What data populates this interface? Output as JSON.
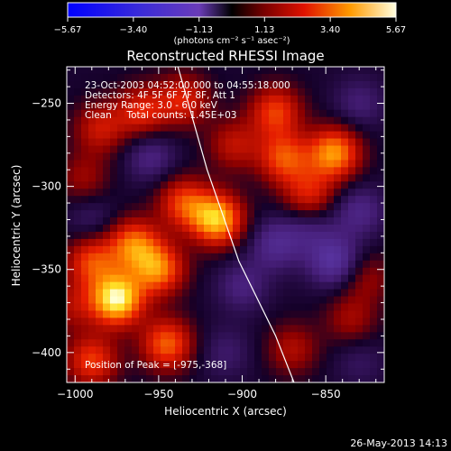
{
  "chart_data": {
    "type": "heatmap",
    "title": "Reconstructed RHESSI Image",
    "xlabel": "Heliocentric X (arcsec)",
    "ylabel": "Heliocentric Y (arcsec)",
    "xlim": [
      -1005,
      -815
    ],
    "ylim": [
      -418,
      -228
    ],
    "x_ticks": [
      -1000,
      -950,
      -900,
      -850
    ],
    "x_tick_labels": [
      "−1000",
      "−950",
      "−900",
      "−850"
    ],
    "y_ticks": [
      -250,
      -300,
      -350,
      -400
    ],
    "y_tick_labels": [
      "−250",
      "−300",
      "−350",
      "−400"
    ],
    "colorbar": {
      "range": [
        -5.67,
        5.67
      ],
      "ticks": [
        -5.67,
        -3.4,
        -1.13,
        1.13,
        3.4,
        5.67
      ],
      "tick_labels": [
        "−5.67",
        "−3.40",
        "−1.13",
        "1.13",
        "3.40",
        "5.67"
      ],
      "unit_label": "(photons cm⁻² s⁻¹ asec⁻²)"
    },
    "annotations": {
      "time_range": "23-Oct-2003 04:52:00.000 to 04:55:18.000",
      "detectors": "Detectors: 4F 5F 6F 7F 8F, Att 1",
      "energy": "Energy Range: 3.0 - 6.0 keV",
      "clean": "Clean     Total counts: 1.45E+03",
      "peak": "Position of Peak = [-975,-368]"
    },
    "limb_arc": [
      [
        -941,
        -219
      ],
      [
        -921,
        -290
      ],
      [
        -902,
        -345
      ],
      [
        -880,
        -390
      ],
      [
        -869,
        -418
      ]
    ],
    "peaks": [
      {
        "x": -975,
        "y": -368,
        "value": 5.6
      },
      {
        "x": -915,
        "y": -320,
        "value": 4.8
      },
      {
        "x": -950,
        "y": -350,
        "value": 3.8
      },
      {
        "x": -990,
        "y": -345,
        "value": 3.0
      },
      {
        "x": -965,
        "y": -335,
        "value": 3.6
      },
      {
        "x": -935,
        "y": -310,
        "value": 3.0
      },
      {
        "x": -945,
        "y": -395,
        "value": 3.5
      },
      {
        "x": -990,
        "y": -405,
        "value": 3.0
      },
      {
        "x": -845,
        "y": -280,
        "value": 4.2
      },
      {
        "x": -875,
        "y": -283,
        "value": 3.2
      },
      {
        "x": -880,
        "y": -255,
        "value": 3.0
      },
      {
        "x": -860,
        "y": -305,
        "value": 2.5
      },
      {
        "x": -960,
        "y": -255,
        "value": 2.6
      },
      {
        "x": -985,
        "y": -265,
        "value": 2.2
      },
      {
        "x": -935,
        "y": -248,
        "value": 2.5
      },
      {
        "x": -905,
        "y": -275,
        "value": 2.0
      },
      {
        "x": -995,
        "y": -295,
        "value": 1.5
      },
      {
        "x": -870,
        "y": -398,
        "value": 1.8
      },
      {
        "x": -835,
        "y": -380,
        "value": 1.6
      },
      {
        "x": -825,
        "y": -355,
        "value": 1.4
      },
      {
        "x": -1002,
        "y": -372,
        "value": 1.6
      },
      {
        "x": -955,
        "y": -282,
        "value": -1.5
      },
      {
        "x": -990,
        "y": -320,
        "value": -1.0
      },
      {
        "x": -880,
        "y": -335,
        "value": -1.8
      },
      {
        "x": -845,
        "y": -345,
        "value": -2.4
      },
      {
        "x": -900,
        "y": -360,
        "value": -1.4
      },
      {
        "x": -860,
        "y": -325,
        "value": -1.2
      },
      {
        "x": -830,
        "y": -315,
        "value": -1.6
      },
      {
        "x": -830,
        "y": -250,
        "value": -1.2
      },
      {
        "x": -910,
        "y": -400,
        "value": -1.0
      },
      {
        "x": -830,
        "y": -405,
        "value": -0.8
      }
    ],
    "footer_timestamp": "26-May-2013 14:13"
  }
}
